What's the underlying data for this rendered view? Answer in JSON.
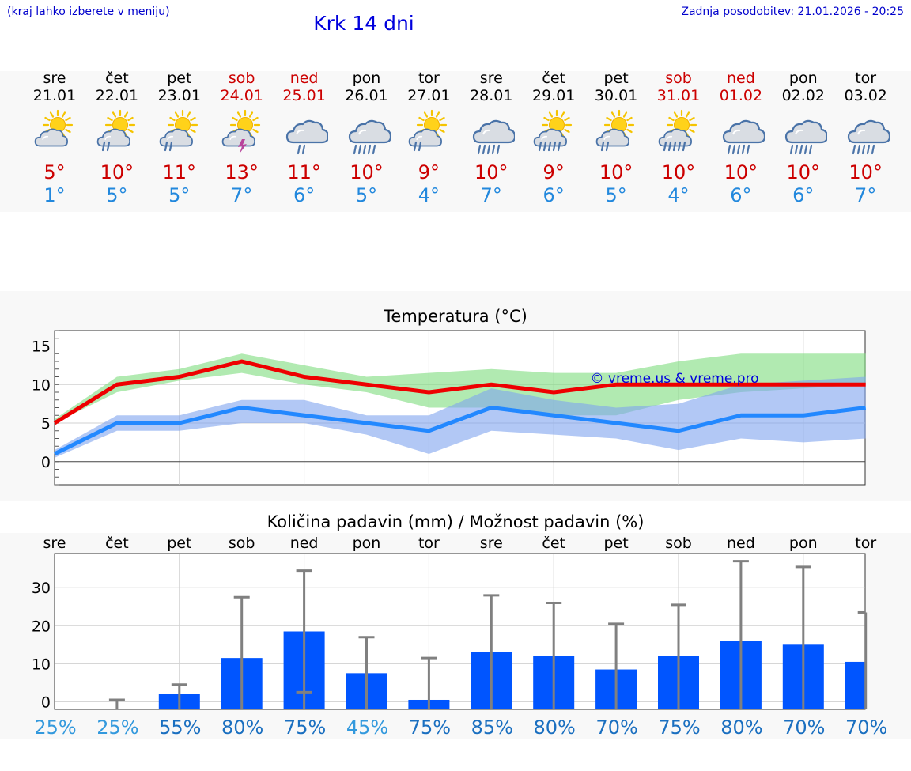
{
  "header": {
    "hint": "(kraj lahko izberete v meniju)",
    "title": "Krk 14 dni",
    "updated": "Zadnja posodobitev: 21.01.2026 - 20:25"
  },
  "days": [
    {
      "name": "sre",
      "date": "21.01",
      "weekend": false,
      "icon": "sun-cloud-icon",
      "tmax": "5°",
      "tmin": "1°"
    },
    {
      "name": "čet",
      "date": "22.01",
      "weekend": false,
      "icon": "sun-cloud-rain-icon",
      "tmax": "10°",
      "tmin": "5°"
    },
    {
      "name": "pet",
      "date": "23.01",
      "weekend": false,
      "icon": "sun-cloud-rain-icon",
      "tmax": "11°",
      "tmin": "5°"
    },
    {
      "name": "sob",
      "date": "24.01",
      "weekend": true,
      "icon": "sun-thunder-icon",
      "tmax": "13°",
      "tmin": "7°"
    },
    {
      "name": "ned",
      "date": "25.01",
      "weekend": true,
      "icon": "cloud-rain-icon",
      "tmax": "11°",
      "tmin": "6°"
    },
    {
      "name": "pon",
      "date": "26.01",
      "weekend": false,
      "icon": "cloud-heavy-rain-icon",
      "tmax": "10°",
      "tmin": "5°"
    },
    {
      "name": "tor",
      "date": "27.01",
      "weekend": false,
      "icon": "sun-cloud-rain-icon",
      "tmax": "9°",
      "tmin": "4°"
    },
    {
      "name": "sre",
      "date": "28.01",
      "weekend": false,
      "icon": "cloud-heavy-rain-icon",
      "tmax": "10°",
      "tmin": "7°"
    },
    {
      "name": "čet",
      "date": "29.01",
      "weekend": false,
      "icon": "sun-cloud-heavy-rain-icon",
      "tmax": "9°",
      "tmin": "6°"
    },
    {
      "name": "pet",
      "date": "30.01",
      "weekend": false,
      "icon": "sun-cloud-rain-icon",
      "tmax": "10°",
      "tmin": "5°"
    },
    {
      "name": "sob",
      "date": "31.01",
      "weekend": true,
      "icon": "sun-cloud-heavy-rain-icon",
      "tmax": "10°",
      "tmin": "4°"
    },
    {
      "name": "ned",
      "date": "01.02",
      "weekend": true,
      "icon": "cloud-heavy-rain-icon",
      "tmax": "10°",
      "tmin": "6°"
    },
    {
      "name": "pon",
      "date": "02.02",
      "weekend": false,
      "icon": "cloud-heavy-rain-icon",
      "tmax": "10°",
      "tmin": "6°"
    },
    {
      "name": "tor",
      "date": "03.02",
      "weekend": false,
      "icon": "cloud-heavy-rain-icon",
      "tmax": "10°",
      "tmin": "7°"
    }
  ],
  "colors": {
    "max_line": "#ee0000",
    "max_band": "#7ddc7d",
    "min_line": "#2288ff",
    "min_band": "#7fa3ee",
    "bar": "#0055ff",
    "err": "#808080",
    "weekend": "#cc0000",
    "weekday": "#000000"
  },
  "chart_data": [
    {
      "type": "line",
      "title": "Temperatura (°C)",
      "watermark": "© vreme.us & vreme.pro",
      "categories": [
        "21.01",
        "22.01",
        "23.01",
        "24.01",
        "25.01",
        "26.01",
        "27.01",
        "28.01",
        "29.01",
        "30.01",
        "31.01",
        "01.02",
        "02.02",
        "03.02"
      ],
      "ylim": [
        -3,
        17
      ],
      "yticks": [
        0,
        5,
        10,
        15
      ],
      "series": [
        {
          "name": "max",
          "values": [
            5,
            10,
            11,
            13,
            11,
            10,
            9,
            10,
            9,
            10,
            10,
            10,
            10,
            10
          ],
          "lower": [
            5,
            9,
            10.5,
            11.5,
            10,
            9,
            7,
            7,
            6,
            6,
            8,
            9,
            9.5,
            10
          ],
          "upper": [
            5.5,
            11,
            12,
            14,
            12.5,
            11,
            11.5,
            12,
            11.5,
            11.5,
            13,
            14,
            14,
            14
          ]
        },
        {
          "name": "min",
          "values": [
            1,
            5,
            5,
            7,
            6,
            5,
            4,
            7,
            6,
            5,
            4,
            6,
            6,
            7
          ],
          "lower": [
            0.5,
            4,
            4,
            5,
            5,
            3.5,
            1,
            4,
            3.5,
            3,
            1.5,
            3,
            2.5,
            3
          ],
          "upper": [
            1.5,
            6,
            6,
            8,
            8,
            6,
            6,
            9.5,
            8,
            7,
            7.5,
            10,
            10.5,
            11
          ]
        }
      ]
    },
    {
      "type": "bar",
      "title": "Količina padavin (mm) / Možnost padavin (%)",
      "categories": [
        "sre",
        "čet",
        "pet",
        "sob",
        "ned",
        "pon",
        "tor",
        "sre",
        "čet",
        "pet",
        "sob",
        "ned",
        "pon",
        "tor"
      ],
      "values": [
        0,
        0,
        2,
        11.5,
        18.5,
        7.5,
        0.5,
        13,
        12,
        8.5,
        12,
        16,
        15,
        10.5
      ],
      "err_low": [
        0,
        0,
        0,
        0,
        2.5,
        0,
        0,
        0,
        0,
        0,
        0,
        0,
        0,
        0
      ],
      "err_high": [
        0,
        0.5,
        4.5,
        27.5,
        34.5,
        17,
        11.5,
        28,
        26,
        20.5,
        25.5,
        37,
        35.5,
        23.5
      ],
      "ylim": [
        -2,
        39
      ],
      "yticks": [
        0,
        10,
        20,
        30
      ],
      "probability": [
        "25%",
        "25%",
        "55%",
        "80%",
        "75%",
        "45%",
        "75%",
        "85%",
        "80%",
        "70%",
        "75%",
        "80%",
        "70%",
        "70%"
      ],
      "probability_colors": [
        "#3399dd",
        "#3399dd",
        "#1a6fc0",
        "#1a6fc0",
        "#1a6fc0",
        "#3399dd",
        "#1a6fc0",
        "#1a6fc0",
        "#1a6fc0",
        "#1a6fc0",
        "#1a6fc0",
        "#1a6fc0",
        "#1a6fc0",
        "#1a6fc0"
      ]
    }
  ]
}
